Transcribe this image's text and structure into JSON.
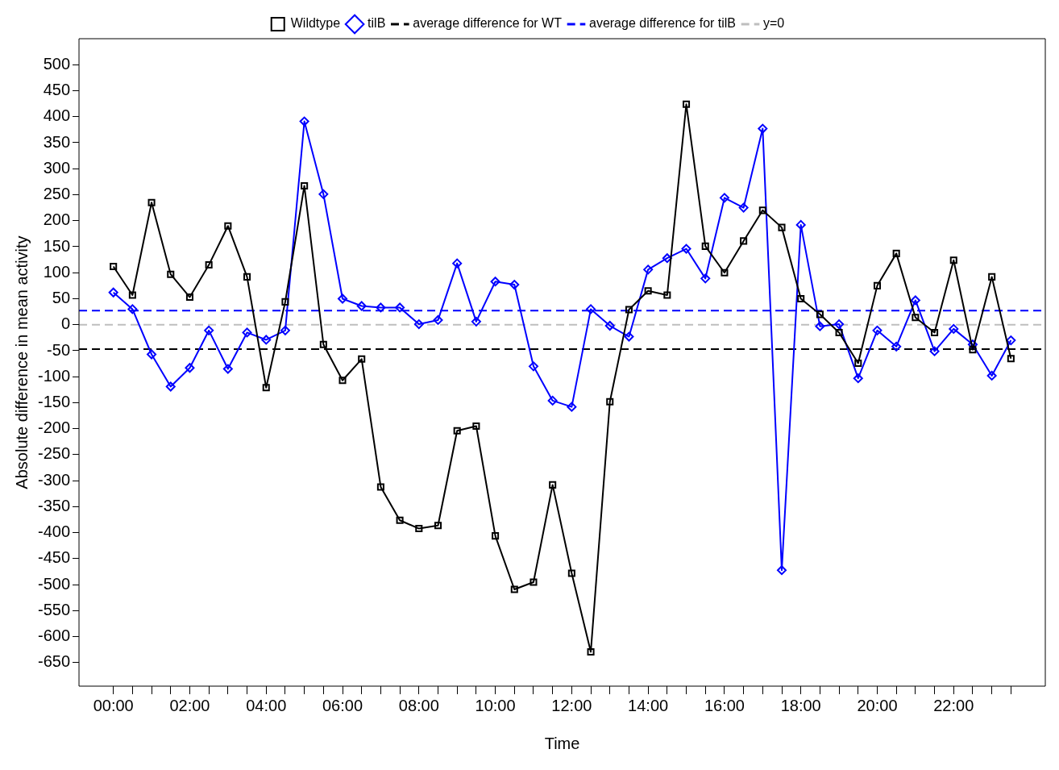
{
  "chart_data": {
    "type": "line",
    "xlabel": "Time",
    "ylabel": "Absolute difference in mean activity",
    "x": [
      0,
      0.5,
      1,
      1.5,
      2,
      2.5,
      3,
      3.5,
      4,
      4.5,
      5,
      5.5,
      6,
      6.5,
      7,
      7.5,
      8,
      8.5,
      9,
      9.5,
      10,
      10.5,
      11,
      11.5,
      12,
      12.5,
      13,
      13.5,
      14,
      14.5,
      15,
      15.5,
      16,
      16.5,
      17,
      17.5,
      18,
      18.5,
      19,
      19.5,
      20,
      20.5,
      21,
      21.5,
      22,
      22.5,
      23,
      23.5
    ],
    "series": [
      {
        "name": "Wildtype",
        "color": "#000000",
        "marker": "square",
        "values": [
          112,
          57,
          235,
          97,
          53,
          115,
          190,
          92,
          -121,
          44,
          267,
          -38,
          -107,
          -66,
          -312,
          -376,
          -392,
          -386,
          -204,
          -195,
          -406,
          -509,
          -495,
          -308,
          -478,
          -629,
          -148,
          29,
          65,
          57,
          424,
          151,
          100,
          161,
          220,
          187,
          50,
          20,
          -15,
          -74,
          75,
          137,
          14,
          -15,
          124,
          -48,
          92,
          -65
        ]
      },
      {
        "name": "tilB",
        "color": "#0000ff",
        "marker": "diamond",
        "values": [
          62,
          30,
          -57,
          -119,
          -83,
          -11,
          -85,
          -15,
          -29,
          -11,
          391,
          251,
          50,
          36,
          33,
          33,
          1,
          9,
          118,
          6,
          83,
          77,
          -80,
          -146,
          -158,
          30,
          -2,
          -23,
          106,
          128,
          146,
          89,
          244,
          225,
          377,
          -472,
          192,
          -3,
          1,
          -103,
          -11,
          -42,
          47,
          -51,
          -8,
          -38,
          -98,
          -30
        ]
      }
    ],
    "ref_lines": [
      {
        "axis": "y",
        "value": -47,
        "label": "average difference for WT",
        "color": "#000000",
        "line_style": "dashed"
      },
      {
        "axis": "y",
        "value": 27,
        "label": "average difference for tilB",
        "color": "#0000ff",
        "line_style": "dashed"
      },
      {
        "axis": "y",
        "value": 0,
        "label": "y=0",
        "color": "#bebebe",
        "line_style": "dashed"
      }
    ],
    "xlim": [
      -0.9,
      24.4
    ],
    "xticks": [
      {
        "value": 0,
        "label": "00:00"
      },
      {
        "value": 0.5,
        "label": null
      },
      {
        "value": 1,
        "label": null
      },
      {
        "value": 1.5,
        "label": null
      },
      {
        "value": 2,
        "label": "02:00"
      },
      {
        "value": 2.5,
        "label": null
      },
      {
        "value": 3,
        "label": null
      },
      {
        "value": 3.5,
        "label": null
      },
      {
        "value": 4,
        "label": "04:00"
      },
      {
        "value": 4.5,
        "label": null
      },
      {
        "value": 5,
        "label": null
      },
      {
        "value": 5.5,
        "label": null
      },
      {
        "value": 6,
        "label": "06:00"
      },
      {
        "value": 6.5,
        "label": null
      },
      {
        "value": 7,
        "label": null
      },
      {
        "value": 7.5,
        "label": null
      },
      {
        "value": 8,
        "label": "08:00"
      },
      {
        "value": 8.5,
        "label": null
      },
      {
        "value": 9,
        "label": null
      },
      {
        "value": 9.5,
        "label": null
      },
      {
        "value": 10,
        "label": "10:00"
      },
      {
        "value": 10.5,
        "label": null
      },
      {
        "value": 11,
        "label": null
      },
      {
        "value": 11.5,
        "label": null
      },
      {
        "value": 12,
        "label": "12:00"
      },
      {
        "value": 12.5,
        "label": null
      },
      {
        "value": 13,
        "label": null
      },
      {
        "value": 13.5,
        "label": null
      },
      {
        "value": 14,
        "label": "14:00"
      },
      {
        "value": 14.5,
        "label": null
      },
      {
        "value": 15,
        "label": null
      },
      {
        "value": 15.5,
        "label": null
      },
      {
        "value": 16,
        "label": "16:00"
      },
      {
        "value": 16.5,
        "label": null
      },
      {
        "value": 17,
        "label": null
      },
      {
        "value": 17.5,
        "label": null
      },
      {
        "value": 18,
        "label": "18:00"
      },
      {
        "value": 18.5,
        "label": null
      },
      {
        "value": 19,
        "label": null
      },
      {
        "value": 19.5,
        "label": null
      },
      {
        "value": 20,
        "label": "20:00"
      },
      {
        "value": 20.5,
        "label": null
      },
      {
        "value": 21,
        "label": null
      },
      {
        "value": 21.5,
        "label": null
      },
      {
        "value": 22,
        "label": "22:00"
      },
      {
        "value": 22.5,
        "label": null
      },
      {
        "value": 23,
        "label": null
      },
      {
        "value": 23.5,
        "label": null
      }
    ],
    "ylim": [
      -695,
      550
    ],
    "yticks": [
      500,
      450,
      400,
      350,
      300,
      250,
      200,
      150,
      100,
      50,
      0,
      -50,
      -100,
      -150,
      -200,
      -250,
      -300,
      -350,
      -400,
      -450,
      -500,
      -550,
      -600,
      -650
    ],
    "grid": false,
    "legend": "top",
    "line_style": "solid"
  }
}
